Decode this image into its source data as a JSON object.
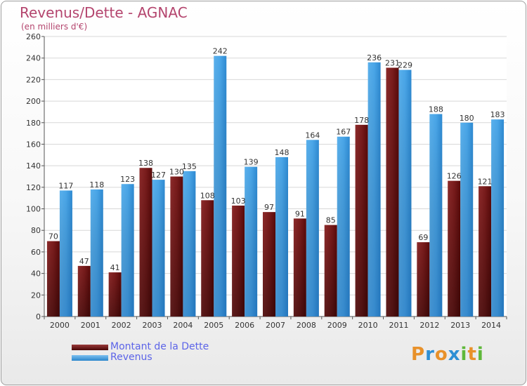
{
  "title": "Revenus/Dette - AGNAC",
  "subtitle": "(en milliers d'€)",
  "colors": {
    "title": "#b4456e",
    "dette": "#7a1c1c",
    "revenus": "#3b9be0",
    "legend_text": "#5c64e8"
  },
  "legend": [
    {
      "label": "Montant de la Dette",
      "color": "#6b1212"
    },
    {
      "label": "Revenus",
      "color": "#3b9be0"
    }
  ],
  "logo": {
    "letters": [
      "P",
      "r",
      "o",
      "x",
      "i",
      "t",
      "i"
    ],
    "colors": [
      "#e8912a",
      "#2e8fd4",
      "#e8912a",
      "#2e8fd4",
      "#5fb83a",
      "#e8912a",
      "#5fb83a"
    ]
  },
  "chart_data": {
    "type": "bar",
    "categories": [
      "2000",
      "2001",
      "2002",
      "2003",
      "2004",
      "2005",
      "2006",
      "2007",
      "2008",
      "2009",
      "2010",
      "2011",
      "2012",
      "2013",
      "2014"
    ],
    "series": [
      {
        "name": "Montant de la Dette",
        "values": [
          70,
          47,
          41,
          138,
          130,
          108,
          103,
          97,
          91,
          85,
          178,
          231,
          69,
          126,
          121
        ]
      },
      {
        "name": "Revenus",
        "values": [
          117,
          118,
          123,
          127,
          135,
          242,
          139,
          148,
          164,
          167,
          236,
          229,
          188,
          180,
          183
        ]
      }
    ],
    "ylim": [
      0,
      260
    ],
    "yticks": [
      0,
      20,
      40,
      60,
      80,
      100,
      120,
      140,
      160,
      180,
      200,
      220,
      240,
      260
    ],
    "grid": true
  }
}
